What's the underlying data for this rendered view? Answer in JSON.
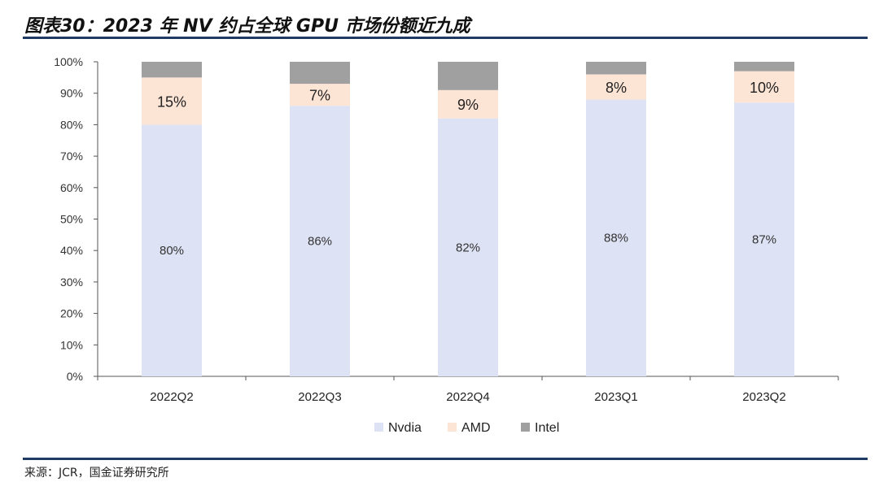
{
  "header": {
    "title": "图表30：2023 年 NV 约占全球 GPU 市场份额近九成"
  },
  "footer": {
    "source": "来源：JCR，国金证券研究所"
  },
  "chart_data": {
    "type": "bar",
    "stacked": true,
    "title": "图表30：2023 年 NV 约占全球 GPU 市场份额近九成",
    "categories": [
      "2022Q2",
      "2022Q3",
      "2022Q4",
      "2023Q1",
      "2023Q2"
    ],
    "series": [
      {
        "name": "Nvdia",
        "values": [
          80,
          86,
          82,
          88,
          87
        ],
        "labels": [
          "80%",
          "86%",
          "82%",
          "88%",
          "87%"
        ],
        "color": "#dde2f4"
      },
      {
        "name": "AMD",
        "values": [
          15,
          7,
          9,
          8,
          10
        ],
        "labels": [
          "15%",
          "7%",
          "9%",
          "8%",
          "10%"
        ],
        "color": "#fde5d6"
      },
      {
        "name": "Intel",
        "values": [
          5,
          7,
          9,
          4,
          3
        ],
        "labels": [],
        "color": "#a0a0a0"
      }
    ],
    "yticks": [
      "0%",
      "10%",
      "20%",
      "30%",
      "40%",
      "50%",
      "60%",
      "70%",
      "80%",
      "90%",
      "100%"
    ],
    "ylim": [
      0,
      100
    ],
    "xlabel": "",
    "ylabel": "",
    "grid": false,
    "legend": {
      "position": "bottom-center",
      "entries": [
        "Nvdia",
        "AMD",
        "Intel"
      ]
    }
  }
}
